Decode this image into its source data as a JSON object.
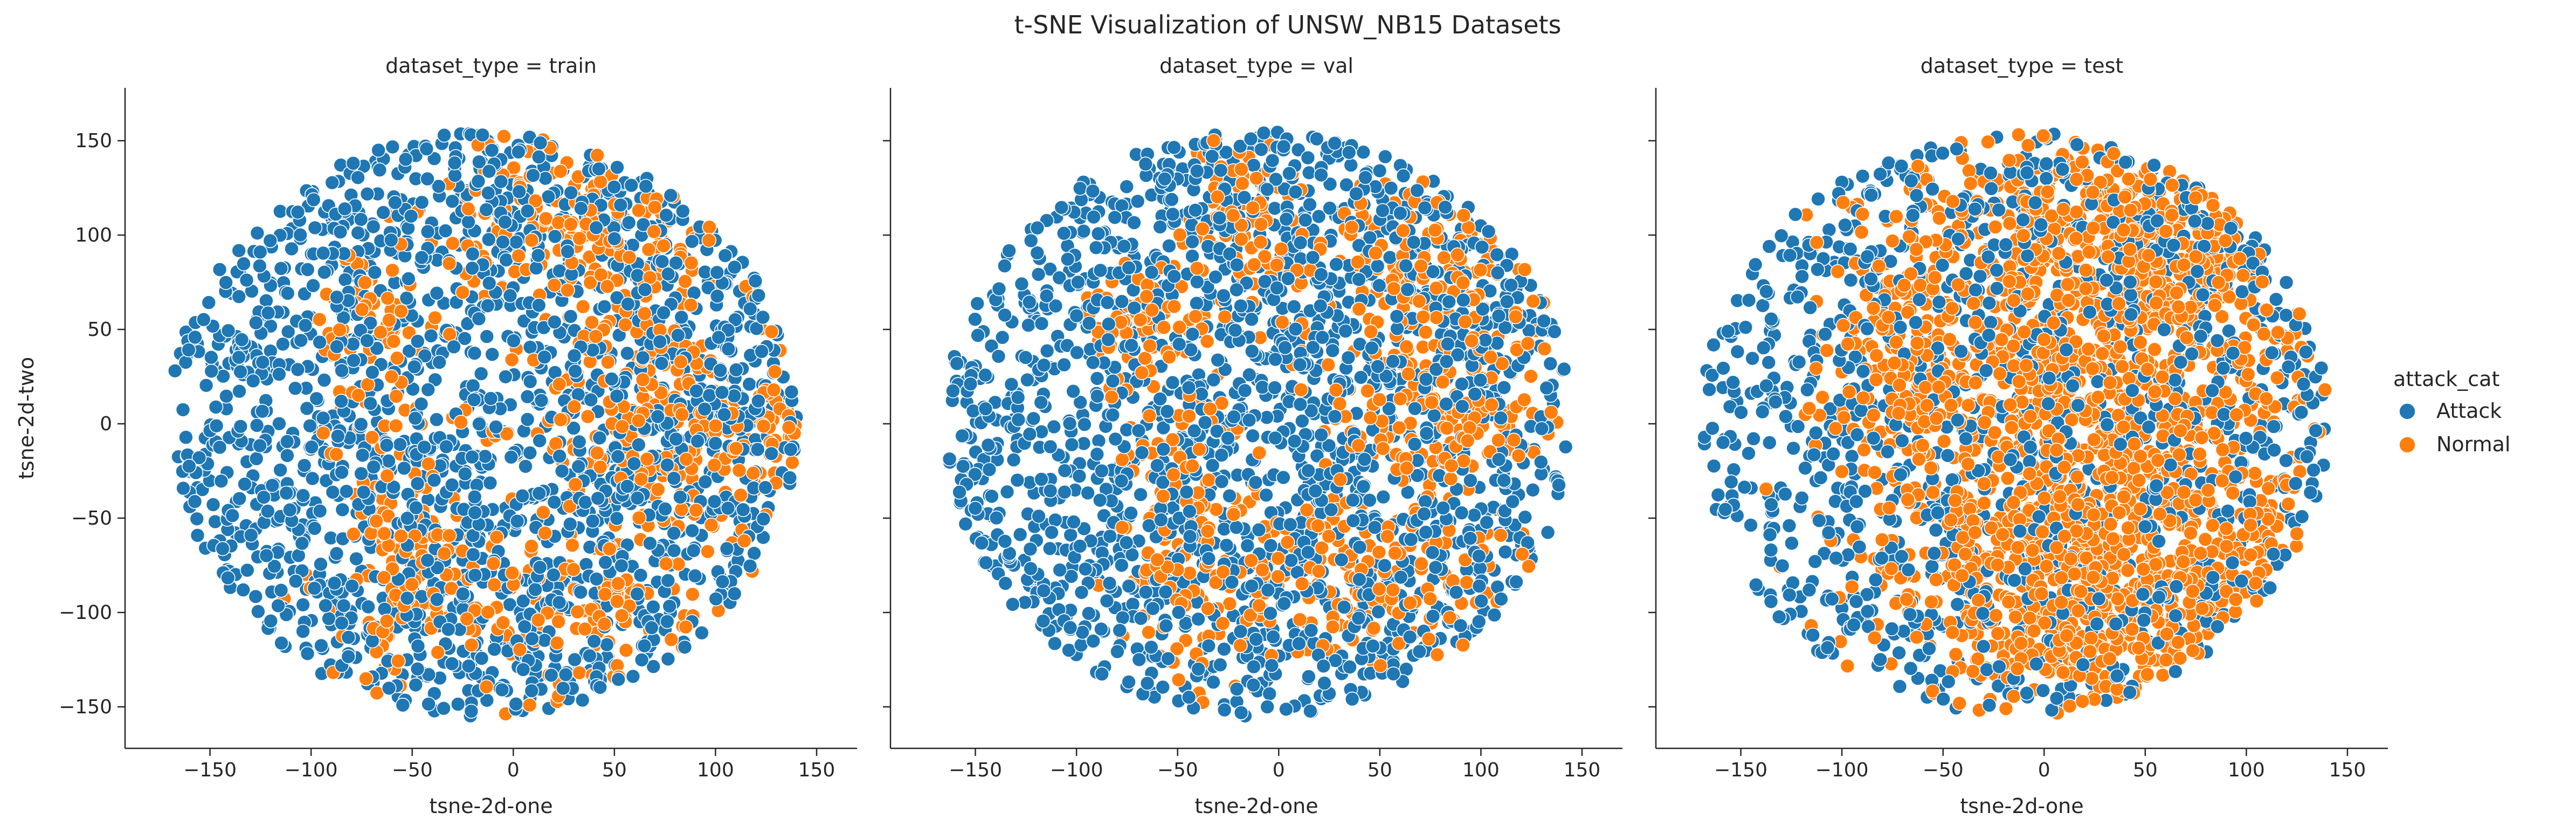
{
  "chart_data": {
    "type": "scatter",
    "title": "t-SNE Visualization of UNSW_NB15 Datasets",
    "legend": {
      "title": "attack_cat",
      "placement": "right",
      "entries": [
        {
          "name": "Attack",
          "color": "#1f77b4"
        },
        {
          "name": "Normal",
          "color": "#ff7f0e"
        }
      ]
    },
    "marker": {
      "edge_color": "#ffffff"
    },
    "xlabel": "tsne-2d-one",
    "ylabel": "tsne-2d-two",
    "xlim": [
      -192,
      170
    ],
    "ylim": [
      -172,
      178
    ],
    "xticks": [
      -150,
      -100,
      -50,
      0,
      50,
      100,
      150
    ],
    "yticks": [
      -150,
      -100,
      -50,
      0,
      50,
      100,
      150
    ],
    "xtick_labels": [
      "−150",
      "−100",
      "−50",
      "0",
      "50",
      "100",
      "150"
    ],
    "ytick_labels": [
      "−150",
      "−100",
      "−50",
      "0",
      "50",
      "100",
      "150"
    ],
    "grid": false,
    "shared_y": true,
    "panels": [
      {
        "title": "dataset_type = train",
        "point_count": 2600,
        "cloud": {
          "center": [
            -15,
            0
          ],
          "radius": 155
        },
        "normal_clusters": [
          {
            "x": 70,
            "y": 0,
            "sx": 30,
            "sy": 30,
            "w": 0.2
          },
          {
            "x": 50,
            "y": 95,
            "sx": 40,
            "sy": 20,
            "w": 0.12
          },
          {
            "x": -55,
            "y": -60,
            "sx": 15,
            "sy": 45,
            "w": 0.1
          },
          {
            "x": 20,
            "y": -95,
            "sx": 55,
            "sy": 25,
            "w": 0.16
          },
          {
            "x": -70,
            "y": 50,
            "sx": 15,
            "sy": 25,
            "w": 0.06
          },
          {
            "x": 15,
            "y": 120,
            "sx": 20,
            "sy": 20,
            "w": 0.06
          },
          {
            "x": 130,
            "y": 5,
            "sx": 10,
            "sy": 25,
            "w": 0.05
          }
        ],
        "normal_fraction": 0.3
      },
      {
        "title": "dataset_type = val",
        "point_count": 2600,
        "cloud": {
          "center": [
            -10,
            0
          ],
          "radius": 155
        },
        "normal_clusters": [
          {
            "x": 85,
            "y": 5,
            "sx": 30,
            "sy": 25,
            "w": 0.18
          },
          {
            "x": 70,
            "y": 85,
            "sx": 35,
            "sy": 22,
            "w": 0.14
          },
          {
            "x": -50,
            "y": -40,
            "sx": 15,
            "sy": 50,
            "w": 0.12
          },
          {
            "x": 40,
            "y": -90,
            "sx": 45,
            "sy": 25,
            "w": 0.16
          },
          {
            "x": -20,
            "y": 110,
            "sx": 15,
            "sy": 25,
            "w": 0.08
          },
          {
            "x": -70,
            "y": 50,
            "sx": 12,
            "sy": 20,
            "w": 0.06
          },
          {
            "x": 0,
            "y": -60,
            "sx": 40,
            "sy": 15,
            "w": 0.06
          }
        ],
        "normal_fraction": 0.3
      },
      {
        "title": "dataset_type = test",
        "point_count": 3200,
        "cloud": {
          "center": [
            -15,
            0
          ],
          "radius": 155
        },
        "normal_clusters": [
          {
            "x": 45,
            "y": 0,
            "sx": 55,
            "sy": 80,
            "w": 0.55
          },
          {
            "x": 20,
            "y": -90,
            "sx": 50,
            "sy": 30,
            "w": 0.2
          },
          {
            "x": -60,
            "y": 40,
            "sx": 25,
            "sy": 45,
            "w": 0.12
          },
          {
            "x": 40,
            "y": 110,
            "sx": 45,
            "sy": 25,
            "w": 0.13
          }
        ],
        "normal_fraction": 0.62
      }
    ]
  }
}
